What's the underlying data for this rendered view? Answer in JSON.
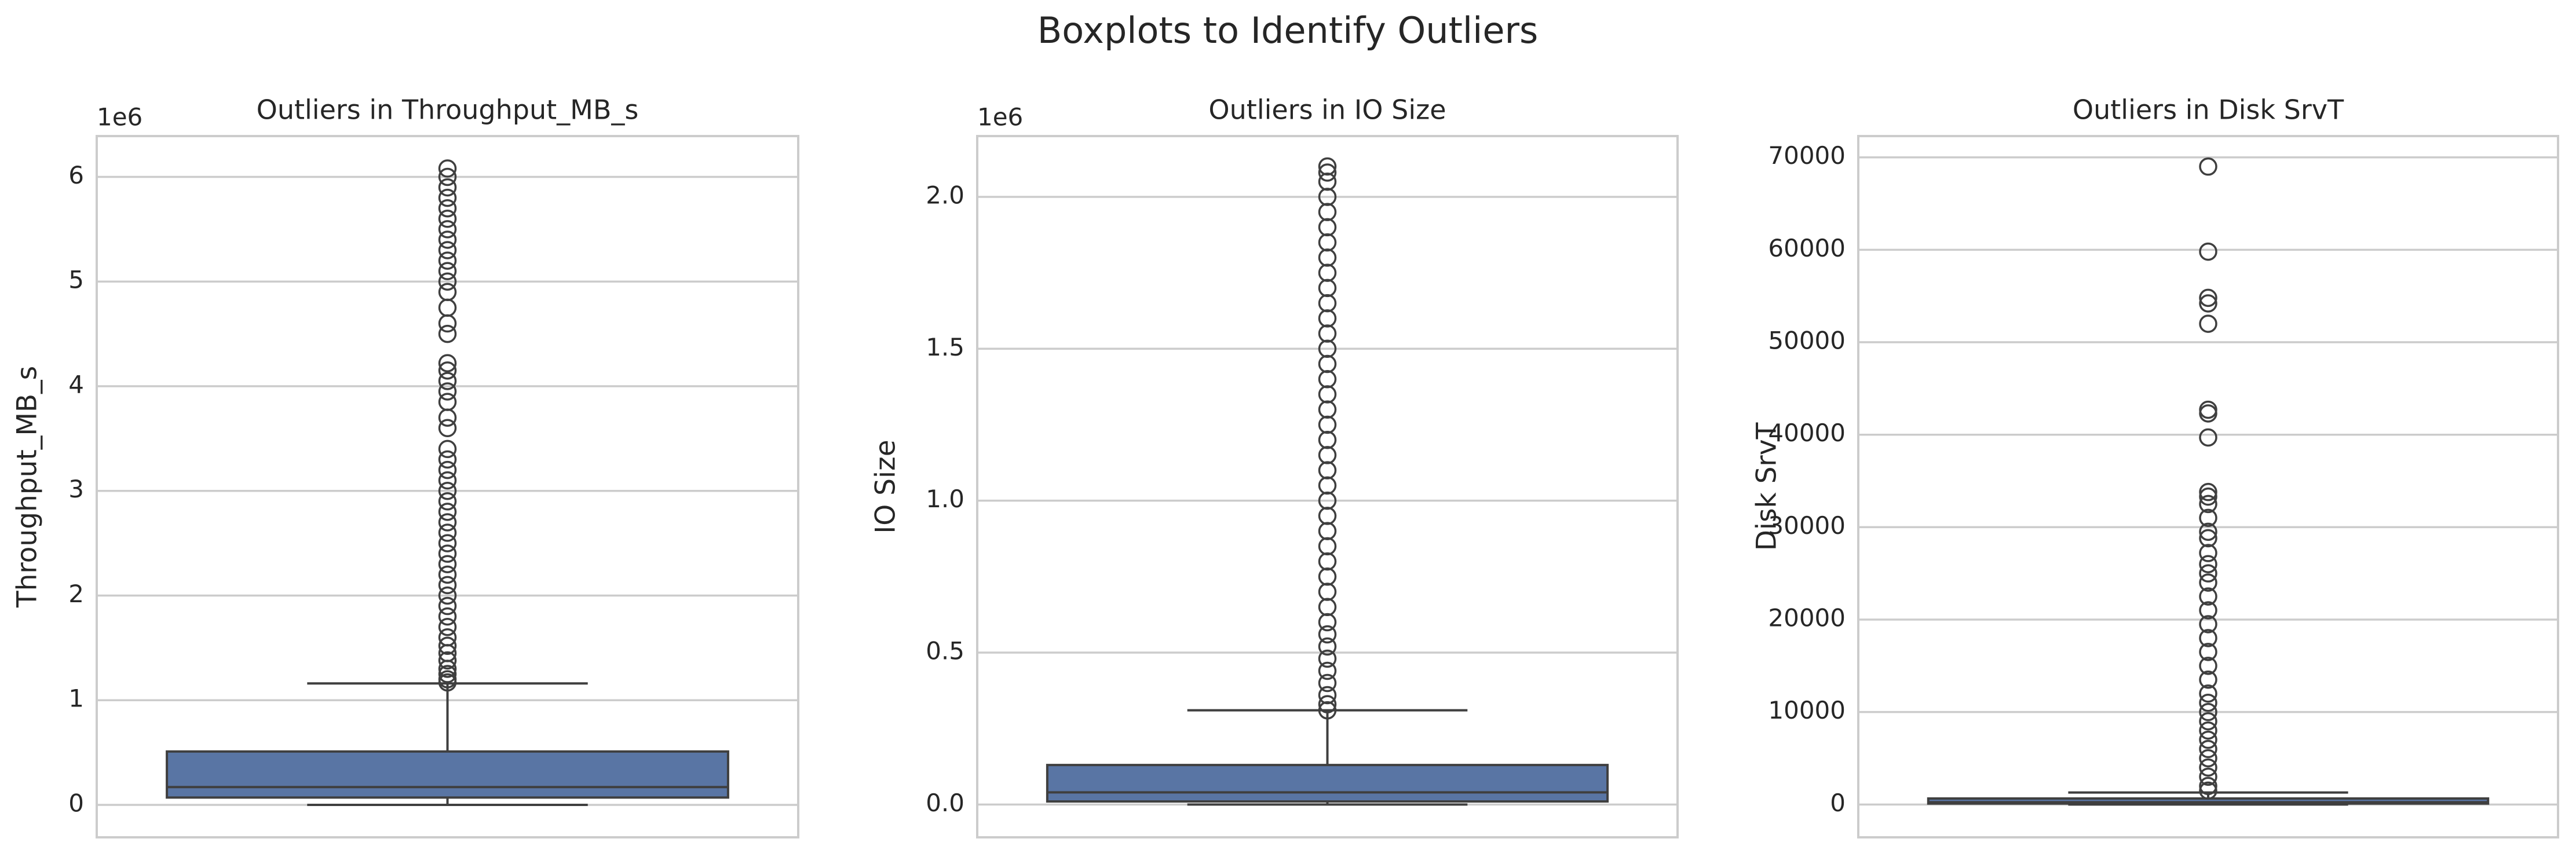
{
  "title": "Boxplots to Identify Outliers",
  "chart_data": [
    {
      "type": "box",
      "title": "Outliers in Throughput_MB_s",
      "ylabel": "Throughput_MB_s",
      "offset_label": "1e6",
      "ylim": [
        -0.31,
        6.39
      ],
      "yticks": [
        0,
        1,
        2,
        3,
        4,
        5,
        6
      ],
      "grid": true,
      "color": "#5975a4",
      "whislo": 0,
      "q1": 0.07,
      "median": 0.17,
      "q3": 0.51,
      "whishi": 1.16,
      "outliers": [
        1.17,
        1.2,
        1.25,
        1.3,
        1.38,
        1.45,
        1.52,
        1.6,
        1.7,
        1.8,
        1.9,
        2.0,
        2.1,
        2.2,
        2.3,
        2.4,
        2.5,
        2.6,
        2.7,
        2.8,
        2.9,
        3.0,
        3.1,
        3.2,
        3.3,
        3.4,
        3.6,
        3.7,
        3.85,
        3.95,
        4.05,
        4.15,
        4.22,
        4.5,
        4.6,
        4.75,
        4.9,
        5.0,
        5.1,
        5.2,
        5.3,
        5.4,
        5.5,
        5.6,
        5.7,
        5.8,
        5.9,
        6.0,
        6.08
      ]
    },
    {
      "type": "box",
      "title": "Outliers in IO Size",
      "ylabel": "IO Size",
      "offset_label": "1e6",
      "ylim": [
        -0.108,
        2.2
      ],
      "yticks": [
        {
          "value": 0,
          "label": "0.0"
        },
        0.5,
        {
          "value": 1,
          "label": "1.0"
        },
        1.5,
        {
          "value": 2,
          "label": "2.0"
        }
      ],
      "grid": true,
      "color": "#5975a4",
      "whislo": 0,
      "q1": 0.01,
      "median": 0.04,
      "q3": 0.13,
      "whishi": 0.31,
      "outliers": [
        0.31,
        0.33,
        0.36,
        0.4,
        0.44,
        0.48,
        0.52,
        0.56,
        0.6,
        0.65,
        0.7,
        0.75,
        0.8,
        0.85,
        0.9,
        0.95,
        1.0,
        1.05,
        1.1,
        1.15,
        1.2,
        1.25,
        1.3,
        1.35,
        1.4,
        1.45,
        1.5,
        1.55,
        1.6,
        1.65,
        1.7,
        1.75,
        1.8,
        1.85,
        1.9,
        1.95,
        2.0,
        2.05,
        2.08,
        2.1
      ]
    },
    {
      "type": "box",
      "title": "Outliers in Disk SrvT",
      "ylabel": "Disk SrvT",
      "ylim": [
        -3550,
        72300
      ],
      "yticks": [
        0,
        10000,
        20000,
        30000,
        40000,
        50000,
        60000,
        70000
      ],
      "grid": true,
      "color": "#5975a4",
      "whislo": 0,
      "q1": 100,
      "median": 250,
      "q3": 650,
      "whishi": 1300,
      "outliers": [
        1500,
        2000,
        3000,
        4000,
        5000,
        6000,
        7000,
        8000,
        9000,
        10000,
        11000,
        12000,
        13500,
        15000,
        16500,
        18000,
        19500,
        21000,
        22500,
        24000,
        25000,
        26000,
        27200,
        28800,
        29500,
        31000,
        32500,
        33300,
        33800,
        39700,
        42300,
        42700,
        52000,
        54200,
        54800,
        59800,
        69000
      ]
    }
  ]
}
